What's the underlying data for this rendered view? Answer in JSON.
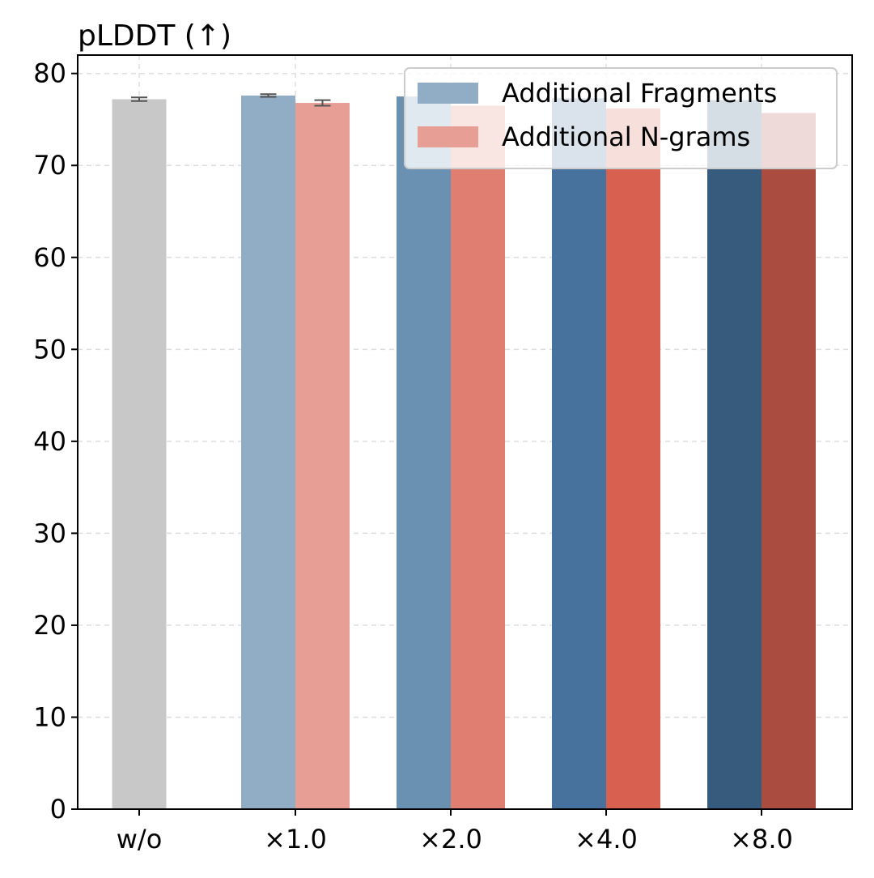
{
  "chart_data": {
    "type": "bar",
    "title": "pLDDT (↑)",
    "xlabel": "",
    "ylabel": "",
    "ylim": [
      0,
      82
    ],
    "yticks": [
      0,
      10,
      20,
      30,
      40,
      50,
      60,
      70,
      80
    ],
    "categories": [
      "w/o",
      "×1.0",
      "×2.0",
      "×4.0",
      "×8.0"
    ],
    "grid": true,
    "legend_position": "top-right",
    "baseline": {
      "category": "w/o",
      "value": 77.2,
      "error": 0.2,
      "color": "#c8c8c8"
    },
    "series": [
      {
        "name": "Additional Fragments",
        "legend_color": "#91adc5",
        "values": [
          null,
          77.6,
          77.5,
          77.3,
          77.1
        ],
        "errors": [
          null,
          0.15,
          null,
          null,
          null
        ],
        "colors": [
          null,
          "#91adc5",
          "#6b91b2",
          "#46729d",
          "#365b7c"
        ]
      },
      {
        "name": "Additional N-grams",
        "legend_color": "#e79e94",
        "values": [
          null,
          76.8,
          76.5,
          76.2,
          75.7
        ],
        "errors": [
          null,
          0.3,
          null,
          null,
          null
        ],
        "colors": [
          null,
          "#e79e94",
          "#e07f71",
          "#d76050",
          "#ab4c41"
        ]
      }
    ]
  }
}
